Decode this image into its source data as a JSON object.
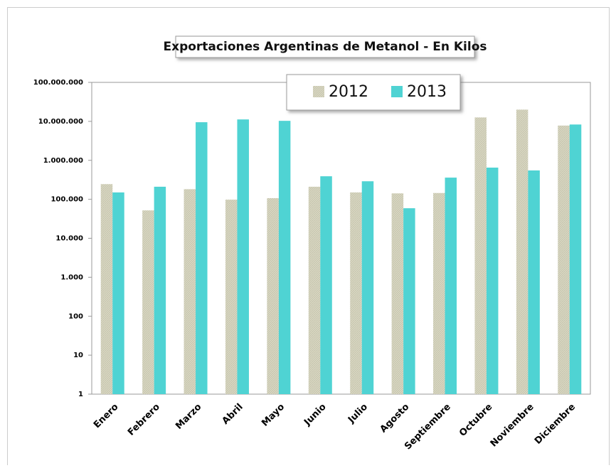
{
  "chart_data": {
    "type": "bar",
    "title": "Exportaciones Argentinas de Metanol - En Kilos",
    "categories": [
      "Enero",
      "Febrero",
      "Marzo",
      "Abril",
      "Mayo",
      "Junio",
      "Julio",
      "Agosto",
      "Septiembre",
      "Octubre",
      "Noviembre",
      "Diciembre"
    ],
    "series": [
      {
        "name": "2012",
        "color": "#d9d8c3",
        "values": [
          245000,
          52000,
          182000,
          98000,
          107000,
          210000,
          150000,
          142000,
          145000,
          12600000,
          20000000,
          7800000
        ]
      },
      {
        "name": "2013",
        "color": "#4fd3d3",
        "values": [
          150000,
          210000,
          9500000,
          11200000,
          10300000,
          390000,
          290000,
          59000,
          360000,
          650000,
          550000,
          8300000
        ]
      }
    ],
    "log_scale": true,
    "ylim": [
      1,
      100000000
    ],
    "yticks": [
      1,
      10,
      100,
      {
        "value": 1000,
        "label": "1.000"
      },
      {
        "value": 10000,
        "label": "10.000"
      },
      {
        "value": 100000,
        "label": "100.000"
      },
      {
        "value": 1000000,
        "label": "1.000.000"
      },
      {
        "value": 10000000,
        "label": "10.000.000"
      },
      {
        "value": 100000000,
        "label": "100.000.000"
      }
    ],
    "grid": false,
    "legend_position": "top"
  }
}
